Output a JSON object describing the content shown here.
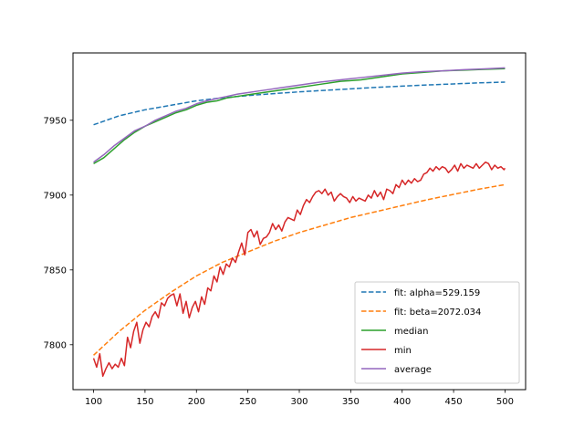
{
  "chart_data": {
    "type": "line",
    "title": "",
    "xlabel": "",
    "ylabel": "",
    "xlim": [
      80,
      520
    ],
    "ylim": [
      7770,
      7995
    ],
    "xticks": [
      100,
      150,
      200,
      250,
      300,
      350,
      400,
      450,
      500
    ],
    "yticks": [
      7800,
      7850,
      7900,
      7950
    ],
    "grid": false,
    "legend_position": "lower-right",
    "series": [
      {
        "name": "fit: alpha=529.159",
        "color": "#1f77b4",
        "style": "dashed",
        "x": [
          100,
          125,
          150,
          175,
          200,
          225,
          250,
          275,
          300,
          325,
          350,
          375,
          400,
          425,
          450,
          475,
          500
        ],
        "y": [
          7947,
          7953,
          7957,
          7960,
          7963,
          7965,
          7966.5,
          7967.8,
          7969,
          7970,
          7971,
          7972,
          7972.8,
          7973.6,
          7974.3,
          7975,
          7975.5
        ]
      },
      {
        "name": "fit: beta=2072.034",
        "color": "#ff7f0e",
        "style": "dashed",
        "x": [
          100,
          125,
          150,
          175,
          200,
          225,
          250,
          275,
          300,
          325,
          350,
          375,
          400,
          425,
          450,
          475,
          500
        ],
        "y": [
          7793,
          7809,
          7823,
          7835,
          7846,
          7855,
          7862,
          7869,
          7875,
          7880,
          7885,
          7889,
          7893,
          7897,
          7900.5,
          7904,
          7907
        ]
      },
      {
        "name": "median",
        "color": "#2ca02c",
        "style": "solid",
        "x": [
          100,
          110,
          120,
          130,
          140,
          150,
          160,
          170,
          180,
          190,
          200,
          210,
          220,
          230,
          240,
          250,
          260,
          270,
          280,
          290,
          300,
          320,
          340,
          360,
          380,
          400,
          420,
          440,
          460,
          480,
          500
        ],
        "y": [
          7921,
          7925,
          7931,
          7937,
          7942,
          7946,
          7949,
          7952,
          7955,
          7957,
          7960,
          7962,
          7963,
          7965,
          7966,
          7967,
          7968,
          7969,
          7970,
          7971,
          7972,
          7974,
          7976,
          7977,
          7979,
          7981,
          7982,
          7983,
          7983.5,
          7984,
          7984.5
        ]
      },
      {
        "name": "min",
        "color": "#d62728",
        "style": "solid",
        "x": [
          100,
          103,
          106,
          109,
          112,
          115,
          118,
          121,
          124,
          127,
          130,
          133,
          136,
          139,
          142,
          145,
          148,
          151,
          154,
          157,
          160,
          163,
          166,
          169,
          172,
          175,
          178,
          181,
          184,
          187,
          190,
          193,
          196,
          199,
          202,
          205,
          208,
          211,
          214,
          217,
          220,
          223,
          226,
          229,
          232,
          235,
          238,
          241,
          244,
          247,
          250,
          253,
          256,
          259,
          262,
          265,
          268,
          271,
          274,
          277,
          280,
          283,
          286,
          289,
          292,
          295,
          298,
          301,
          304,
          307,
          310,
          313,
          316,
          319,
          322,
          325,
          328,
          331,
          334,
          337,
          340,
          343,
          346,
          349,
          352,
          355,
          358,
          361,
          364,
          367,
          370,
          373,
          376,
          379,
          382,
          385,
          388,
          391,
          394,
          397,
          400,
          403,
          406,
          409,
          412,
          415,
          418,
          421,
          424,
          427,
          430,
          433,
          436,
          439,
          442,
          445,
          448,
          451,
          454,
          457,
          460,
          463,
          466,
          469,
          472,
          475,
          478,
          481,
          484,
          487,
          490,
          493,
          496,
          499,
          500
        ],
        "y": [
          7791,
          7785,
          7794,
          7779,
          7784,
          7788,
          7784,
          7787,
          7785,
          7791,
          7786,
          7805,
          7798,
          7809,
          7815,
          7801,
          7810,
          7815,
          7812,
          7819,
          7822,
          7818,
          7828,
          7826,
          7831,
          7833,
          7834,
          7826,
          7834,
          7821,
          7829,
          7818,
          7825,
          7829,
          7822,
          7832,
          7827,
          7838,
          7836,
          7846,
          7842,
          7852,
          7847,
          7854,
          7852,
          7858,
          7855,
          7862,
          7868,
          7860,
          7875,
          7877,
          7872,
          7876,
          7867,
          7871,
          7872,
          7875,
          7881,
          7877,
          7880,
          7876,
          7882,
          7885,
          7884,
          7883,
          7890,
          7887,
          7893,
          7897,
          7895,
          7899,
          7902,
          7903,
          7901,
          7904,
          7900,
          7902,
          7896,
          7899,
          7901,
          7899,
          7898,
          7895,
          7899,
          7896,
          7898,
          7897,
          7896,
          7900,
          7898,
          7903,
          7899,
          7902,
          7897,
          7904,
          7903,
          7901,
          7907,
          7905,
          7910,
          7907,
          7910,
          7908,
          7911,
          7909,
          7910,
          7914,
          7915,
          7918,
          7916,
          7919,
          7917,
          7919,
          7918,
          7915,
          7917,
          7920,
          7916,
          7921,
          7918,
          7920,
          7919,
          7918,
          7921,
          7918,
          7920,
          7922,
          7921,
          7917,
          7920,
          7918,
          7919,
          7917,
          7918
        ]
      },
      {
        "name": "average",
        "color": "#9467bd",
        "style": "solid",
        "x": [
          100,
          110,
          120,
          130,
          140,
          150,
          160,
          170,
          180,
          190,
          200,
          210,
          220,
          230,
          240,
          250,
          260,
          270,
          280,
          290,
          300,
          320,
          340,
          360,
          380,
          400,
          420,
          440,
          460,
          480,
          500
        ],
        "y": [
          7922,
          7927,
          7933,
          7938,
          7943,
          7946,
          7950,
          7953,
          7956,
          7958,
          7961,
          7963,
          7964.5,
          7966,
          7967.5,
          7968.5,
          7969.5,
          7970.5,
          7971.5,
          7972.5,
          7973.5,
          7975.5,
          7977,
          7978.5,
          7980,
          7981.5,
          7982.5,
          7983,
          7983.8,
          7984.3,
          7985
        ]
      }
    ]
  }
}
